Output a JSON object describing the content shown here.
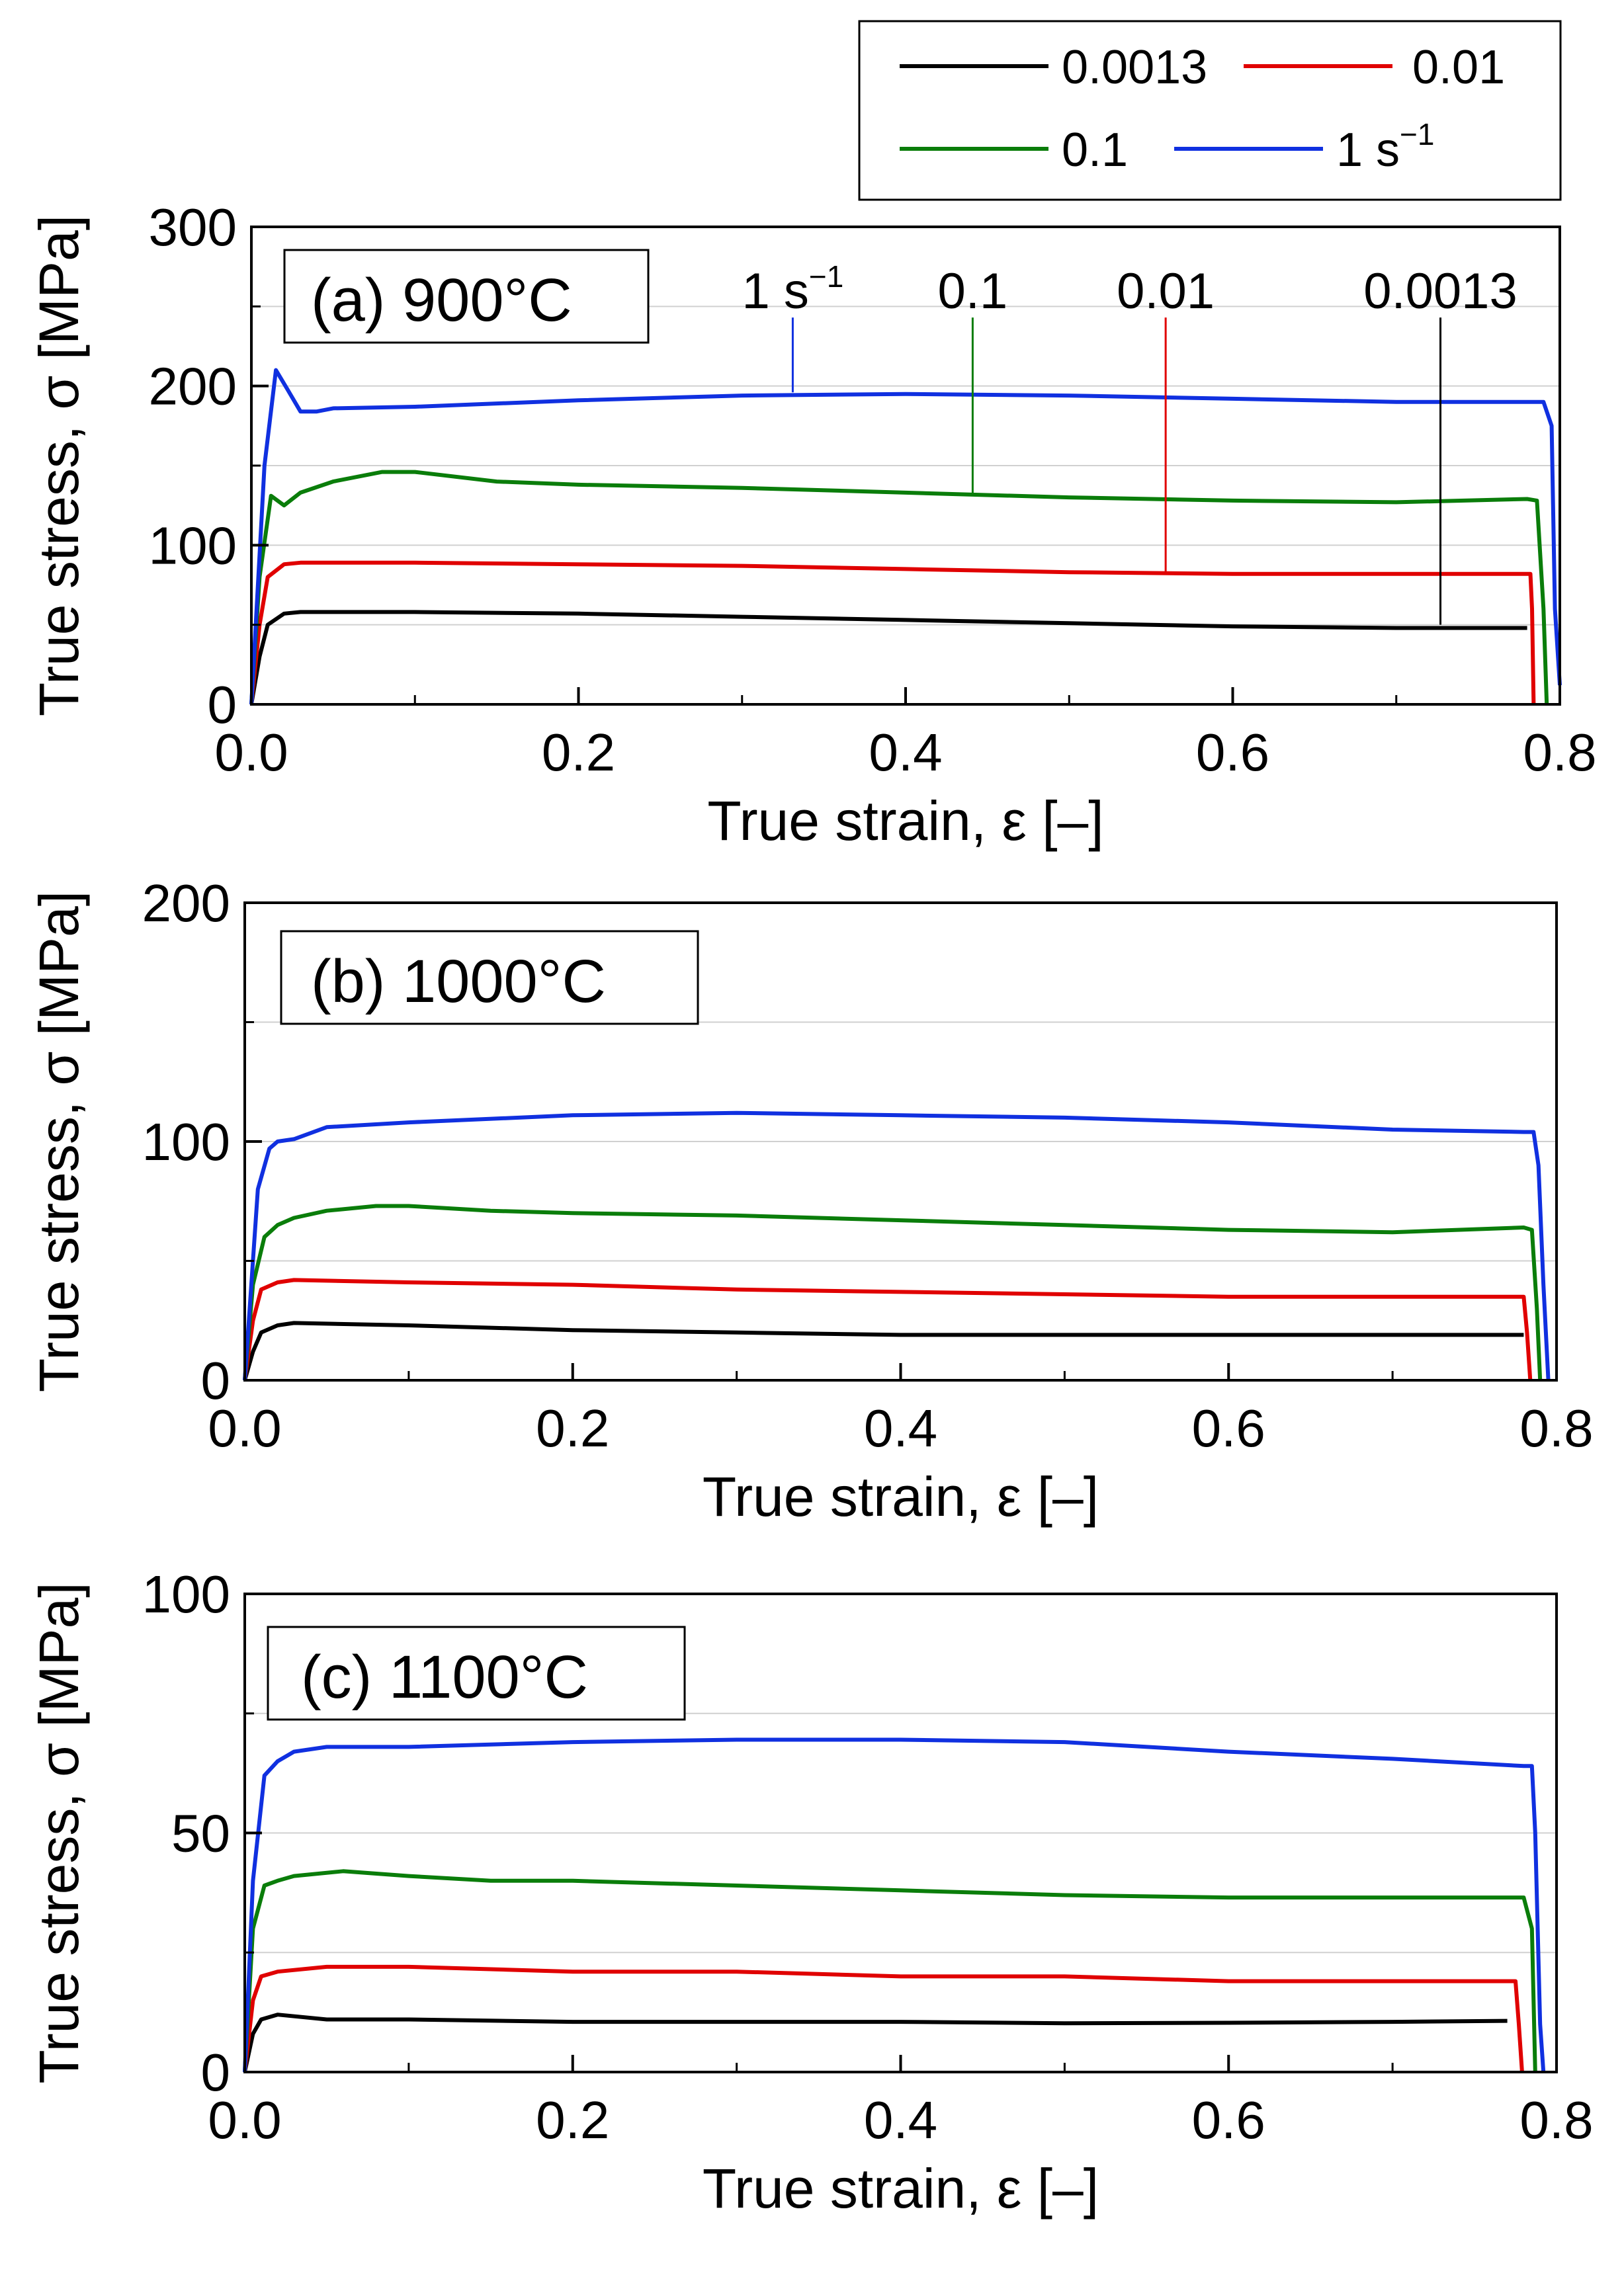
{
  "legend": {
    "entries": [
      {
        "label": "0.0013",
        "color": "#000000"
      },
      {
        "label": "0.01",
        "color": "#e00000"
      },
      {
        "label": "0.1",
        "color": "#0a7d0a"
      },
      {
        "label": "1 s",
        "sup": "−1",
        "color": "#1030e0"
      }
    ]
  },
  "chart_data": [
    {
      "type": "line",
      "title": "(a) 900°C",
      "xlabel": "True strain, ε [–]",
      "ylabel": "True stress, σ [MPa]",
      "xlim": [
        0,
        0.8
      ],
      "ylim": [
        0,
        300
      ],
      "xticks": [
        "0.0",
        "0.2",
        "0.4",
        "0.6",
        "0.8"
      ],
      "yticks": [
        "0",
        "100",
        "200",
        "300"
      ],
      "grid": "horizontal",
      "series": [
        {
          "name": "0.0013",
          "color": "#000000",
          "points": [
            [
              0,
              0
            ],
            [
              0.005,
              30
            ],
            [
              0.01,
              50
            ],
            [
              0.02,
              57
            ],
            [
              0.03,
              58
            ],
            [
              0.1,
              58
            ],
            [
              0.2,
              57
            ],
            [
              0.3,
              55
            ],
            [
              0.4,
              53
            ],
            [
              0.5,
              51
            ],
            [
              0.6,
              49
            ],
            [
              0.7,
              48
            ],
            [
              0.75,
              48
            ],
            [
              0.78,
              48
            ]
          ]
        },
        {
          "name": "0.01",
          "color": "#e00000",
          "points": [
            [
              0,
              0
            ],
            [
              0.005,
              50
            ],
            [
              0.01,
              80
            ],
            [
              0.02,
              88
            ],
            [
              0.03,
              89
            ],
            [
              0.1,
              89
            ],
            [
              0.2,
              88
            ],
            [
              0.3,
              87
            ],
            [
              0.4,
              85
            ],
            [
              0.5,
              83
            ],
            [
              0.6,
              82
            ],
            [
              0.7,
              82
            ],
            [
              0.782,
              82
            ],
            [
              0.783,
              60
            ],
            [
              0.784,
              0
            ]
          ]
        },
        {
          "name": "0.1",
          "color": "#0a7d0a",
          "points": [
            [
              0,
              0
            ],
            [
              0.005,
              80
            ],
            [
              0.012,
              131
            ],
            [
              0.02,
              125
            ],
            [
              0.03,
              133
            ],
            [
              0.05,
              140
            ],
            [
              0.08,
              146
            ],
            [
              0.1,
              146
            ],
            [
              0.15,
              140
            ],
            [
              0.2,
              138
            ],
            [
              0.3,
              136
            ],
            [
              0.4,
              133
            ],
            [
              0.5,
              130
            ],
            [
              0.6,
              128
            ],
            [
              0.7,
              127
            ],
            [
              0.78,
              129
            ],
            [
              0.786,
              128
            ],
            [
              0.79,
              60
            ],
            [
              0.792,
              0
            ]
          ]
        },
        {
          "name": "1",
          "color": "#1030e0",
          "points": [
            [
              0,
              0
            ],
            [
              0.008,
              150
            ],
            [
              0.015,
              210
            ],
            [
              0.022,
              198
            ],
            [
              0.03,
              184
            ],
            [
              0.04,
              184
            ],
            [
              0.05,
              186
            ],
            [
              0.1,
              187
            ],
            [
              0.2,
              191
            ],
            [
              0.3,
              194
            ],
            [
              0.4,
              195
            ],
            [
              0.5,
              194
            ],
            [
              0.6,
              192
            ],
            [
              0.7,
              190
            ],
            [
              0.78,
              190
            ],
            [
              0.79,
              190
            ],
            [
              0.795,
              175
            ],
            [
              0.797,
              60
            ],
            [
              0.8,
              12
            ]
          ]
        }
      ],
      "annotations": [
        {
          "text": "1 s",
          "sup": "−1",
          "x": 0.331,
          "y_top": 243,
          "y_bottom": 196,
          "color": "#1030e0"
        },
        {
          "text": "0.1",
          "x": 0.441,
          "y_top": 243,
          "y_bottom": 132,
          "color": "#0a7d0a"
        },
        {
          "text": "0.01",
          "x": 0.559,
          "y_top": 243,
          "y_bottom": 83,
          "color": "#e00000"
        },
        {
          "text": "0.0013",
          "x": 0.727,
          "y_top": 243,
          "y_bottom": 50,
          "color": "#000000"
        }
      ]
    },
    {
      "type": "line",
      "title": "(b) 1000°C",
      "xlabel": "True strain, ε [–]",
      "ylabel": "True stress, σ [MPa]",
      "xlim": [
        0,
        0.8
      ],
      "ylim": [
        0,
        200
      ],
      "xticks": [
        "0.0",
        "0.2",
        "0.4",
        "0.6",
        "0.8"
      ],
      "yticks": [
        "0",
        "100",
        "200"
      ],
      "grid": "horizontal",
      "series": [
        {
          "name": "0.0013",
          "color": "#000000",
          "points": [
            [
              0,
              0
            ],
            [
              0.005,
              12
            ],
            [
              0.01,
              20
            ],
            [
              0.02,
              23
            ],
            [
              0.03,
              24
            ],
            [
              0.1,
              23
            ],
            [
              0.2,
              21
            ],
            [
              0.3,
              20
            ],
            [
              0.4,
              19
            ],
            [
              0.5,
              19
            ],
            [
              0.6,
              19
            ],
            [
              0.7,
              19
            ],
            [
              0.78,
              19
            ]
          ]
        },
        {
          "name": "0.01",
          "color": "#e00000",
          "points": [
            [
              0,
              0
            ],
            [
              0.005,
              25
            ],
            [
              0.01,
              38
            ],
            [
              0.02,
              41
            ],
            [
              0.03,
              42
            ],
            [
              0.1,
              41
            ],
            [
              0.2,
              40
            ],
            [
              0.3,
              38
            ],
            [
              0.4,
              37
            ],
            [
              0.5,
              36
            ],
            [
              0.6,
              35
            ],
            [
              0.7,
              35
            ],
            [
              0.78,
              35
            ],
            [
              0.782,
              20
            ],
            [
              0.784,
              0
            ]
          ]
        },
        {
          "name": "0.1",
          "color": "#0a7d0a",
          "points": [
            [
              0,
              0
            ],
            [
              0.005,
              40
            ],
            [
              0.012,
              60
            ],
            [
              0.02,
              65
            ],
            [
              0.03,
              68
            ],
            [
              0.05,
              71
            ],
            [
              0.08,
              73
            ],
            [
              0.1,
              73
            ],
            [
              0.15,
              71
            ],
            [
              0.2,
              70
            ],
            [
              0.3,
              69
            ],
            [
              0.4,
              67
            ],
            [
              0.5,
              65
            ],
            [
              0.6,
              63
            ],
            [
              0.7,
              62
            ],
            [
              0.78,
              64
            ],
            [
              0.785,
              63
            ],
            [
              0.788,
              30
            ],
            [
              0.79,
              0
            ]
          ]
        },
        {
          "name": "1",
          "color": "#1030e0",
          "points": [
            [
              0,
              0
            ],
            [
              0.008,
              80
            ],
            [
              0.015,
              97
            ],
            [
              0.02,
              100
            ],
            [
              0.03,
              101
            ],
            [
              0.05,
              106
            ],
            [
              0.1,
              108
            ],
            [
              0.2,
              111
            ],
            [
              0.3,
              112
            ],
            [
              0.4,
              111
            ],
            [
              0.5,
              110
            ],
            [
              0.6,
              108
            ],
            [
              0.7,
              105
            ],
            [
              0.78,
              104
            ],
            [
              0.786,
              104
            ],
            [
              0.789,
              90
            ],
            [
              0.792,
              40
            ],
            [
              0.795,
              0
            ]
          ]
        }
      ]
    },
    {
      "type": "line",
      "title": "(c) 1100°C",
      "xlabel": "True strain, ε [–]",
      "ylabel": "True stress, σ [MPa]",
      "xlim": [
        0,
        0.8
      ],
      "ylim": [
        0,
        100
      ],
      "xticks": [
        "0.0",
        "0.2",
        "0.4",
        "0.6",
        "0.8"
      ],
      "yticks": [
        "0",
        "50",
        "100"
      ],
      "grid": "horizontal",
      "series": [
        {
          "name": "0.0013",
          "color": "#000000",
          "points": [
            [
              0,
              0
            ],
            [
              0.005,
              8
            ],
            [
              0.01,
              11
            ],
            [
              0.02,
              12
            ],
            [
              0.05,
              11
            ],
            [
              0.1,
              11
            ],
            [
              0.2,
              10.5
            ],
            [
              0.3,
              10.5
            ],
            [
              0.4,
              10.5
            ],
            [
              0.5,
              10.2
            ],
            [
              0.6,
              10.3
            ],
            [
              0.7,
              10.5
            ],
            [
              0.77,
              10.7
            ]
          ]
        },
        {
          "name": "0.01",
          "color": "#e00000",
          "points": [
            [
              0,
              0
            ],
            [
              0.005,
              15
            ],
            [
              0.01,
              20
            ],
            [
              0.02,
              21
            ],
            [
              0.05,
              22
            ],
            [
              0.1,
              22
            ],
            [
              0.2,
              21
            ],
            [
              0.3,
              21
            ],
            [
              0.4,
              20
            ],
            [
              0.5,
              20
            ],
            [
              0.6,
              19
            ],
            [
              0.7,
              19
            ],
            [
              0.775,
              19
            ],
            [
              0.777,
              10
            ],
            [
              0.779,
              0
            ]
          ]
        },
        {
          "name": "0.1",
          "color": "#0a7d0a",
          "points": [
            [
              0,
              0
            ],
            [
              0.005,
              30
            ],
            [
              0.012,
              39
            ],
            [
              0.02,
              40
            ],
            [
              0.03,
              41
            ],
            [
              0.06,
              42
            ],
            [
              0.1,
              41
            ],
            [
              0.15,
              40
            ],
            [
              0.2,
              40
            ],
            [
              0.3,
              39
            ],
            [
              0.4,
              38
            ],
            [
              0.5,
              37
            ],
            [
              0.6,
              36.5
            ],
            [
              0.7,
              36.5
            ],
            [
              0.78,
              36.5
            ],
            [
              0.785,
              30
            ],
            [
              0.787,
              0
            ]
          ]
        },
        {
          "name": "1",
          "color": "#1030e0",
          "points": [
            [
              0,
              0
            ],
            [
              0.005,
              40
            ],
            [
              0.012,
              62
            ],
            [
              0.02,
              65
            ],
            [
              0.03,
              67
            ],
            [
              0.05,
              68
            ],
            [
              0.1,
              68
            ],
            [
              0.2,
              69
            ],
            [
              0.3,
              69.5
            ],
            [
              0.4,
              69.5
            ],
            [
              0.5,
              69
            ],
            [
              0.6,
              67
            ],
            [
              0.7,
              65.5
            ],
            [
              0.78,
              64
            ],
            [
              0.785,
              64
            ],
            [
              0.787,
              50
            ],
            [
              0.79,
              10
            ],
            [
              0.792,
              0
            ]
          ]
        }
      ]
    }
  ]
}
